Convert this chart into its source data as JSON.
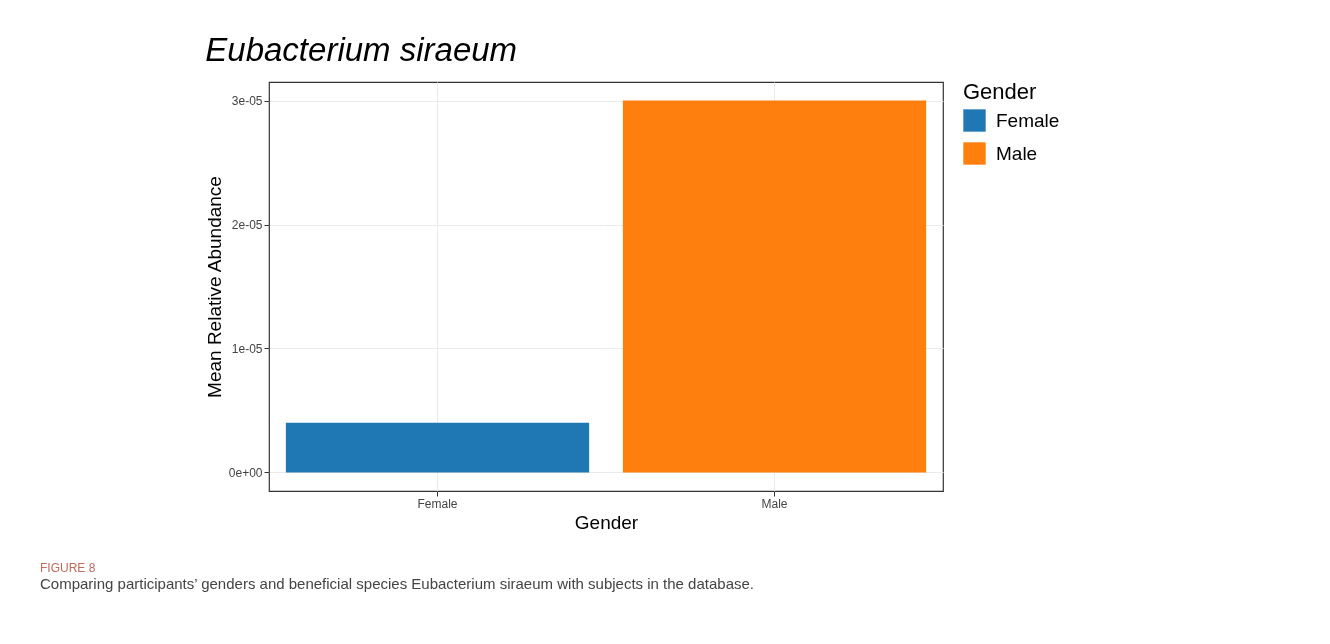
{
  "chart_data": {
    "type": "bar",
    "title": "Eubacterium siraeum",
    "xlabel": "Gender",
    "ylabel": "Mean Relative Abundance",
    "legend_title": "Gender",
    "categories": [
      "Female",
      "Male"
    ],
    "series": [
      {
        "name": "Female",
        "color": "#1f78b4",
        "values": [
          4e-06,
          null
        ]
      },
      {
        "name": "Male",
        "color": "#ff7f0e",
        "values": [
          null,
          3e-05
        ]
      }
    ],
    "ylim": [
      -1.5e-06,
      3.15e-05
    ],
    "yticks": [
      {
        "value": 0,
        "label": "0e+00"
      },
      {
        "value": 1e-05,
        "label": "1e-05"
      },
      {
        "value": 2e-05,
        "label": "2e-05"
      },
      {
        "value": 3e-05,
        "label": "3e-05"
      }
    ],
    "grid": true,
    "legend": "right",
    "annotations": [
      "FIGURE 8",
      "Comparing participants’ genders and beneficial species Eubacterium siraeum with subjects in the database."
    ]
  }
}
